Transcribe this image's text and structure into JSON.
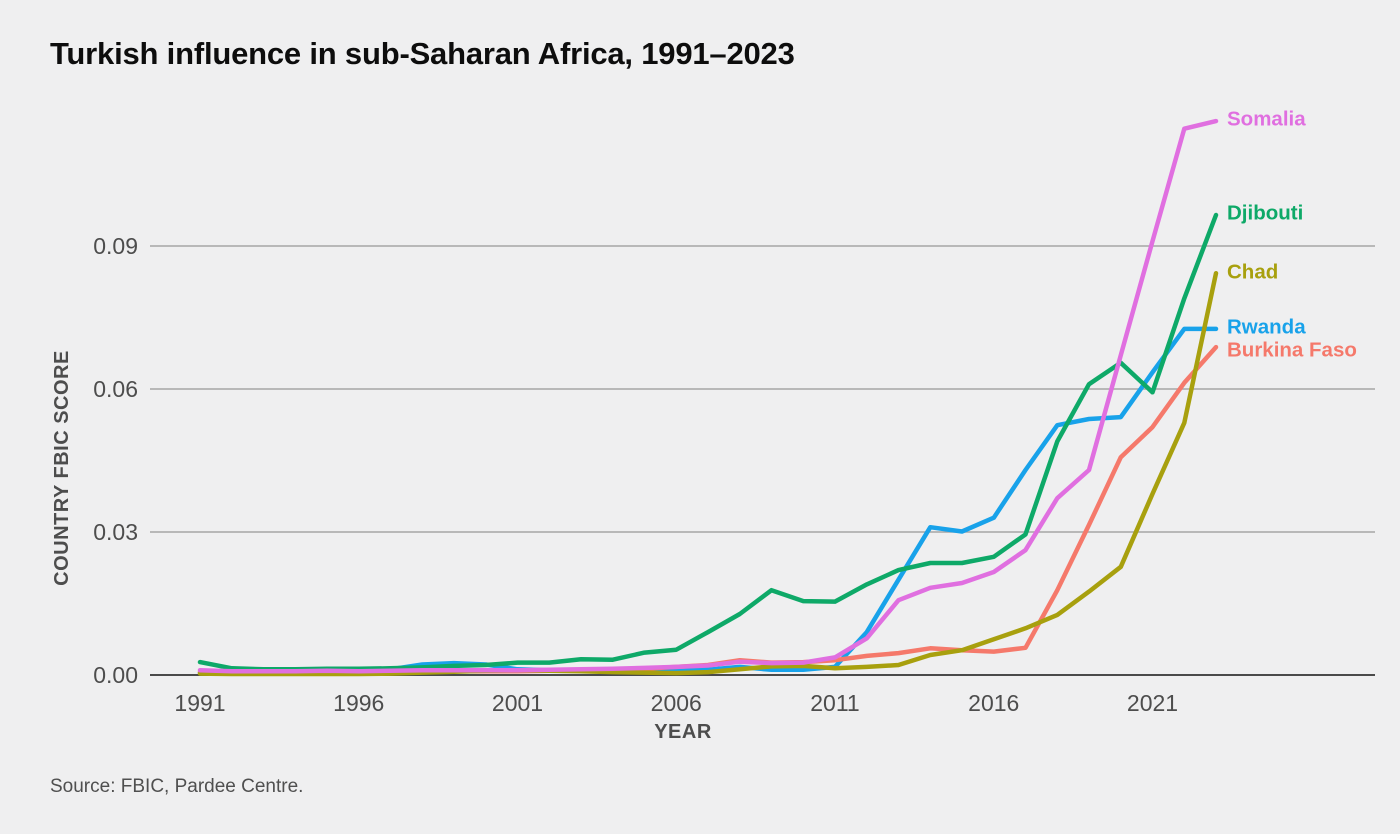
{
  "title": "Turkish influence in sub-Saharan Africa, 1991–2023",
  "source_note": "Source: FBIC, Pardee Centre.",
  "colors": {
    "background": "#efeff0",
    "gridline": "#a6a6a6",
    "axis_line": "#4a4a4a",
    "tick_text": "#4d4d4d",
    "title_text": "#0d0d0d",
    "source_text": "#4f4f4f"
  },
  "axes": {
    "x_label": "YEAR",
    "y_label": "COUNTRY FBIC SCORE",
    "x_ticks": [
      1991,
      1996,
      2001,
      2006,
      2011,
      2016,
      2021
    ],
    "y_ticks": [
      "0.00",
      "0.03",
      "0.06",
      "0.09"
    ]
  },
  "chart_data": {
    "type": "line",
    "title": "Turkish influence in sub-Saharan Africa, 1991–2023",
    "xlabel": "YEAR",
    "ylabel": "COUNTRY FBIC SCORE",
    "xlim": [
      1991,
      2023
    ],
    "ylim": [
      0,
      0.12
    ],
    "y_tick_values": [
      0,
      0.03,
      0.06,
      0.09
    ],
    "grid": "horizontal",
    "legend_position": "labels-at-line-ends",
    "x": [
      1991,
      1992,
      1993,
      1994,
      1995,
      1996,
      1997,
      1998,
      1999,
      2000,
      2001,
      2002,
      2003,
      2004,
      2005,
      2006,
      2007,
      2008,
      2009,
      2010,
      2011,
      2012,
      2013,
      2014,
      2015,
      2016,
      2017,
      2018,
      2019,
      2020,
      2021,
      2022,
      2023
    ],
    "series": [
      {
        "name": "Somalia",
        "color": "#e06fe0",
        "values": [
          0.001,
          0.0008,
          0.0008,
          0.0008,
          0.0009,
          0.0008,
          0.0009,
          0.001,
          0.001,
          0.001,
          0.001,
          0.0011,
          0.0012,
          0.0013,
          0.0015,
          0.0017,
          0.002,
          0.0028,
          0.0025,
          0.0026,
          0.0037,
          0.0077,
          0.0157,
          0.0183,
          0.0193,
          0.0216,
          0.0262,
          0.0371,
          0.043,
          0.0671,
          0.091,
          0.1146,
          0.1162
        ]
      },
      {
        "name": "Djibouti",
        "color": "#0ea968",
        "values": [
          0.0027,
          0.0014,
          0.0012,
          0.0012,
          0.0013,
          0.0013,
          0.0014,
          0.0016,
          0.0019,
          0.0021,
          0.0026,
          0.0026,
          0.0033,
          0.0032,
          0.0047,
          0.0053,
          0.009,
          0.0128,
          0.0178,
          0.0155,
          0.0154,
          0.019,
          0.022,
          0.0235,
          0.0235,
          0.0248,
          0.0295,
          0.049,
          0.061,
          0.0655,
          0.0593,
          0.079,
          0.0965
        ]
      },
      {
        "name": "Chad",
        "color": "#a8a00e",
        "values": [
          0.0003,
          0.0002,
          0.0002,
          0.0002,
          0.0002,
          0.0002,
          0.0003,
          0.0005,
          0.0007,
          0.0009,
          0.001,
          0.0009,
          0.0008,
          0.0006,
          0.0005,
          0.0004,
          0.0006,
          0.0012,
          0.0018,
          0.0019,
          0.0014,
          0.0017,
          0.0021,
          0.0042,
          0.0052,
          0.0075,
          0.0098,
          0.0126,
          0.0175,
          0.0227,
          0.038,
          0.0529,
          0.0843
        ]
      },
      {
        "name": "Rwanda",
        "color": "#18a2ea",
        "values": [
          0.0005,
          0.0004,
          0.0004,
          0.0004,
          0.0005,
          0.0005,
          0.0012,
          0.0022,
          0.0025,
          0.0022,
          0.0012,
          0.001,
          0.001,
          0.001,
          0.0011,
          0.0011,
          0.0011,
          0.0017,
          0.0011,
          0.0011,
          0.0017,
          0.009,
          0.02,
          0.031,
          0.0301,
          0.033,
          0.043,
          0.0524,
          0.0537,
          0.0541,
          0.0635,
          0.0726,
          0.0726
        ]
      },
      {
        "name": "Burkina Faso",
        "color": "#f5796b",
        "values": [
          0.0006,
          0.0005,
          0.0005,
          0.0005,
          0.0006,
          0.0006,
          0.0006,
          0.0007,
          0.0008,
          0.0008,
          0.0008,
          0.0009,
          0.001,
          0.0011,
          0.0013,
          0.0017,
          0.0021,
          0.0031,
          0.0026,
          0.0027,
          0.0031,
          0.004,
          0.0046,
          0.0056,
          0.0052,
          0.0049,
          0.0057,
          0.0178,
          0.0315,
          0.0457,
          0.052,
          0.0613,
          0.0688
        ]
      }
    ]
  }
}
